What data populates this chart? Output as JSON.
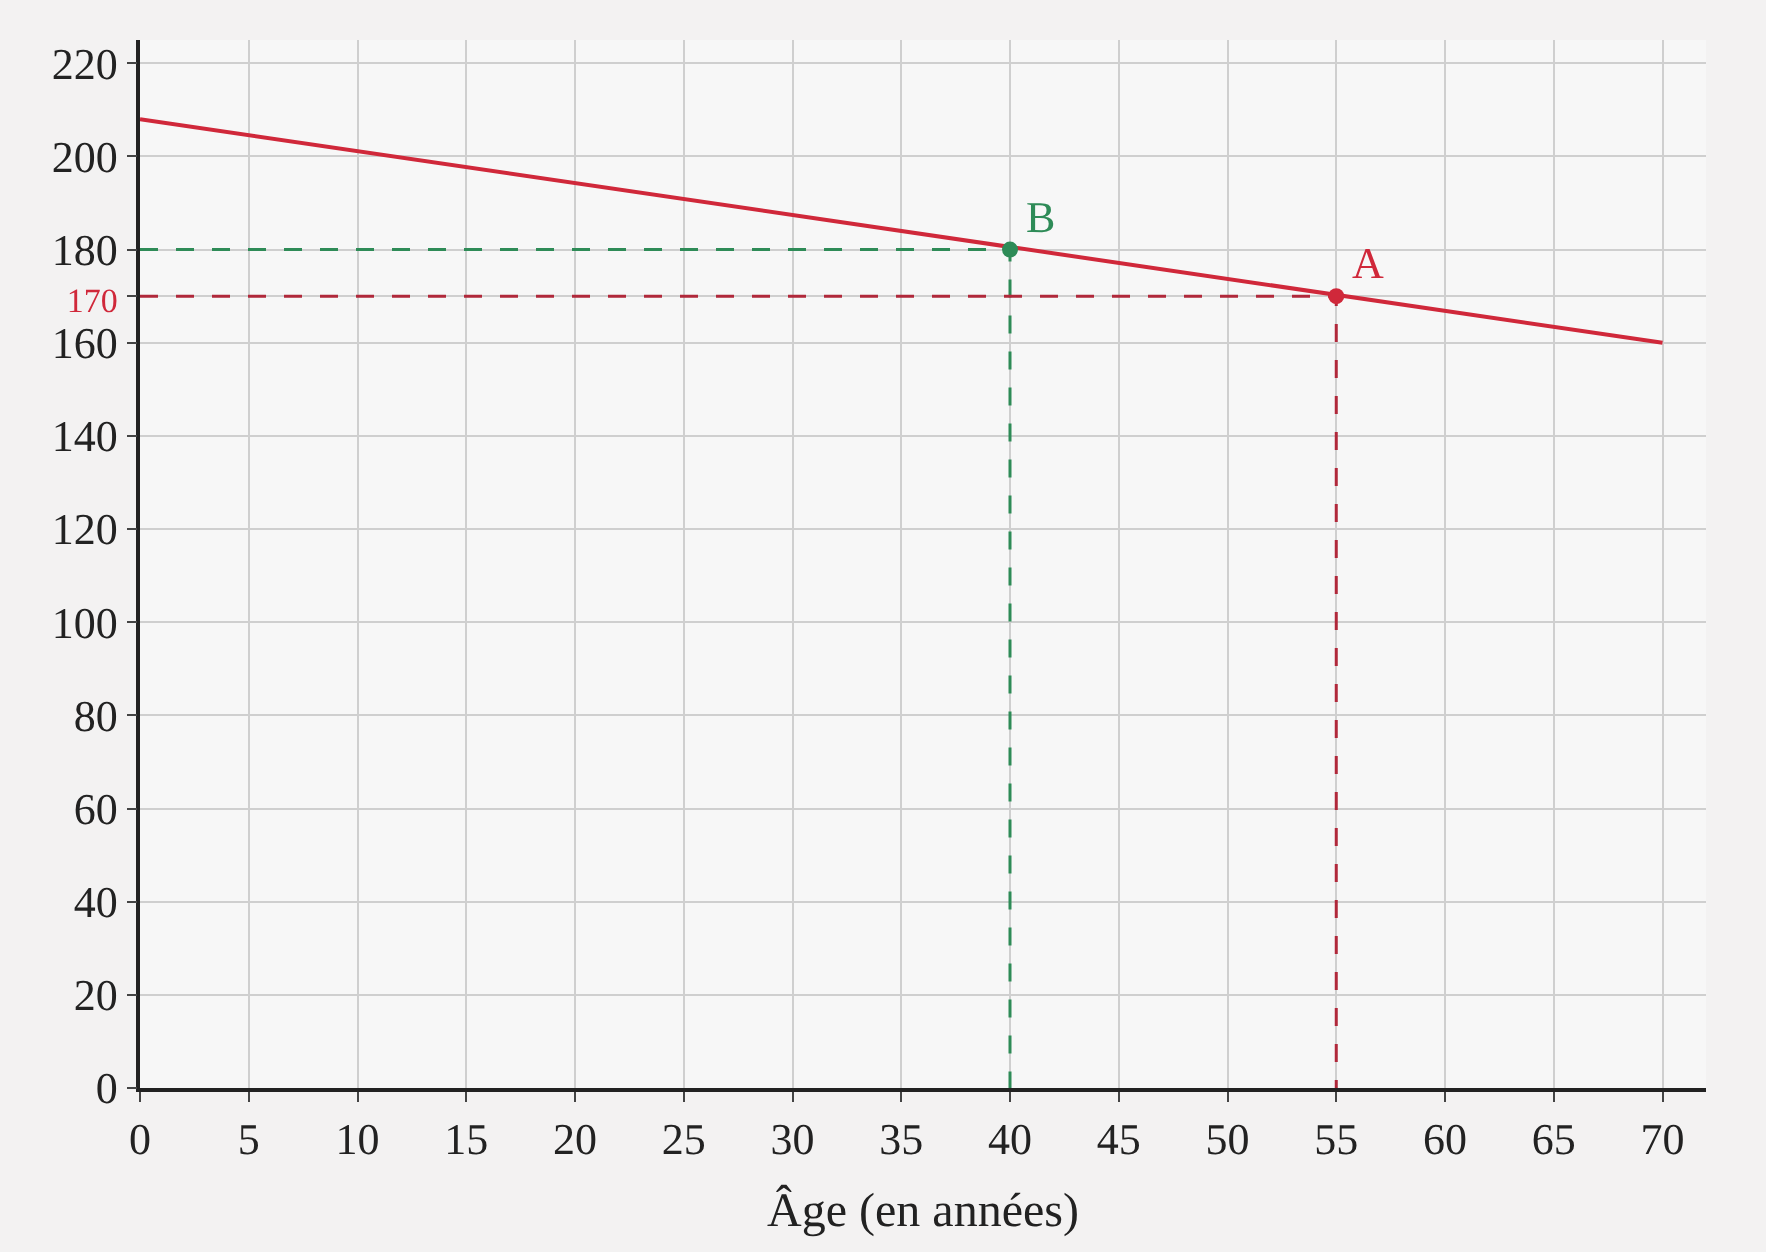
{
  "chart_data": {
    "type": "line",
    "xlabel": "Âge (en années)",
    "series": [
      {
        "color": "#d0283a",
        "x": [
          0,
          70
        ],
        "values": [
          208,
          160
        ],
        "marker": "none",
        "line_style": "solid"
      },
      {
        "color": "#2e8b57",
        "x": [
          0,
          40,
          40
        ],
        "values": [
          180,
          180,
          0
        ],
        "marker": "none",
        "line_style": "dashed"
      },
      {
        "color": "#b0283a",
        "x": [
          0,
          55,
          55
        ],
        "values": [
          170,
          170,
          0
        ],
        "marker": "none",
        "line_style": "dashed"
      },
      {
        "type": "scatter",
        "color": "#2e8b57",
        "x": [
          40
        ],
        "values": [
          180
        ],
        "marker": "circle"
      },
      {
        "type": "scatter",
        "color": "#d0283a",
        "x": [
          55
        ],
        "values": [
          170
        ],
        "marker": "circle"
      }
    ],
    "annotations": [
      {
        "text": "B",
        "x": 40,
        "y": 180
      },
      {
        "text": "A",
        "x": 55,
        "y": 170
      }
    ],
    "xlim": [
      0,
      72
    ],
    "ylim": [
      0,
      225
    ],
    "xticks": [
      0,
      5,
      10,
      15,
      20,
      25,
      30,
      35,
      40,
      45,
      50,
      55,
      60,
      65,
      70
    ],
    "yticks": [
      0,
      20,
      40,
      60,
      80,
      100,
      120,
      140,
      160,
      {
        "value": 170,
        "label": "170"
      },
      180,
      200,
      220
    ],
    "grid": true
  }
}
